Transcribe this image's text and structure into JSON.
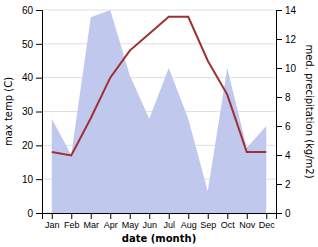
{
  "chart_data": {
    "type": "line",
    "categories": [
      "Jan",
      "Feb",
      "Mar",
      "Apr",
      "May",
      "Jun",
      "Jul",
      "Aug",
      "Sep",
      "Oct",
      "Nov",
      "Dec"
    ],
    "xlabel": "date (month)",
    "ylabel": "max temp (C)",
    "y2label": "med. precipitation (kg/m2)",
    "ylim": [
      0,
      60
    ],
    "yticks": [
      0,
      10,
      20,
      30,
      40,
      50,
      60
    ],
    "y2lim": [
      0,
      14
    ],
    "y2ticks": [
      0,
      2,
      4,
      6,
      8,
      10,
      12,
      14
    ],
    "grid": true,
    "series": [
      {
        "type": "area",
        "axis": "y2",
        "color": "#c0c8ee",
        "values": [
          6.5,
          4.0,
          13.5,
          14.0,
          9.5,
          6.5,
          10.0,
          6.5,
          1.5,
          10.0,
          4.5,
          6.0
        ]
      },
      {
        "type": "line",
        "color": "#a03030",
        "values": [
          18,
          17,
          28,
          40,
          48,
          53,
          58,
          58,
          45,
          35,
          18,
          18
        ]
      }
    ]
  }
}
